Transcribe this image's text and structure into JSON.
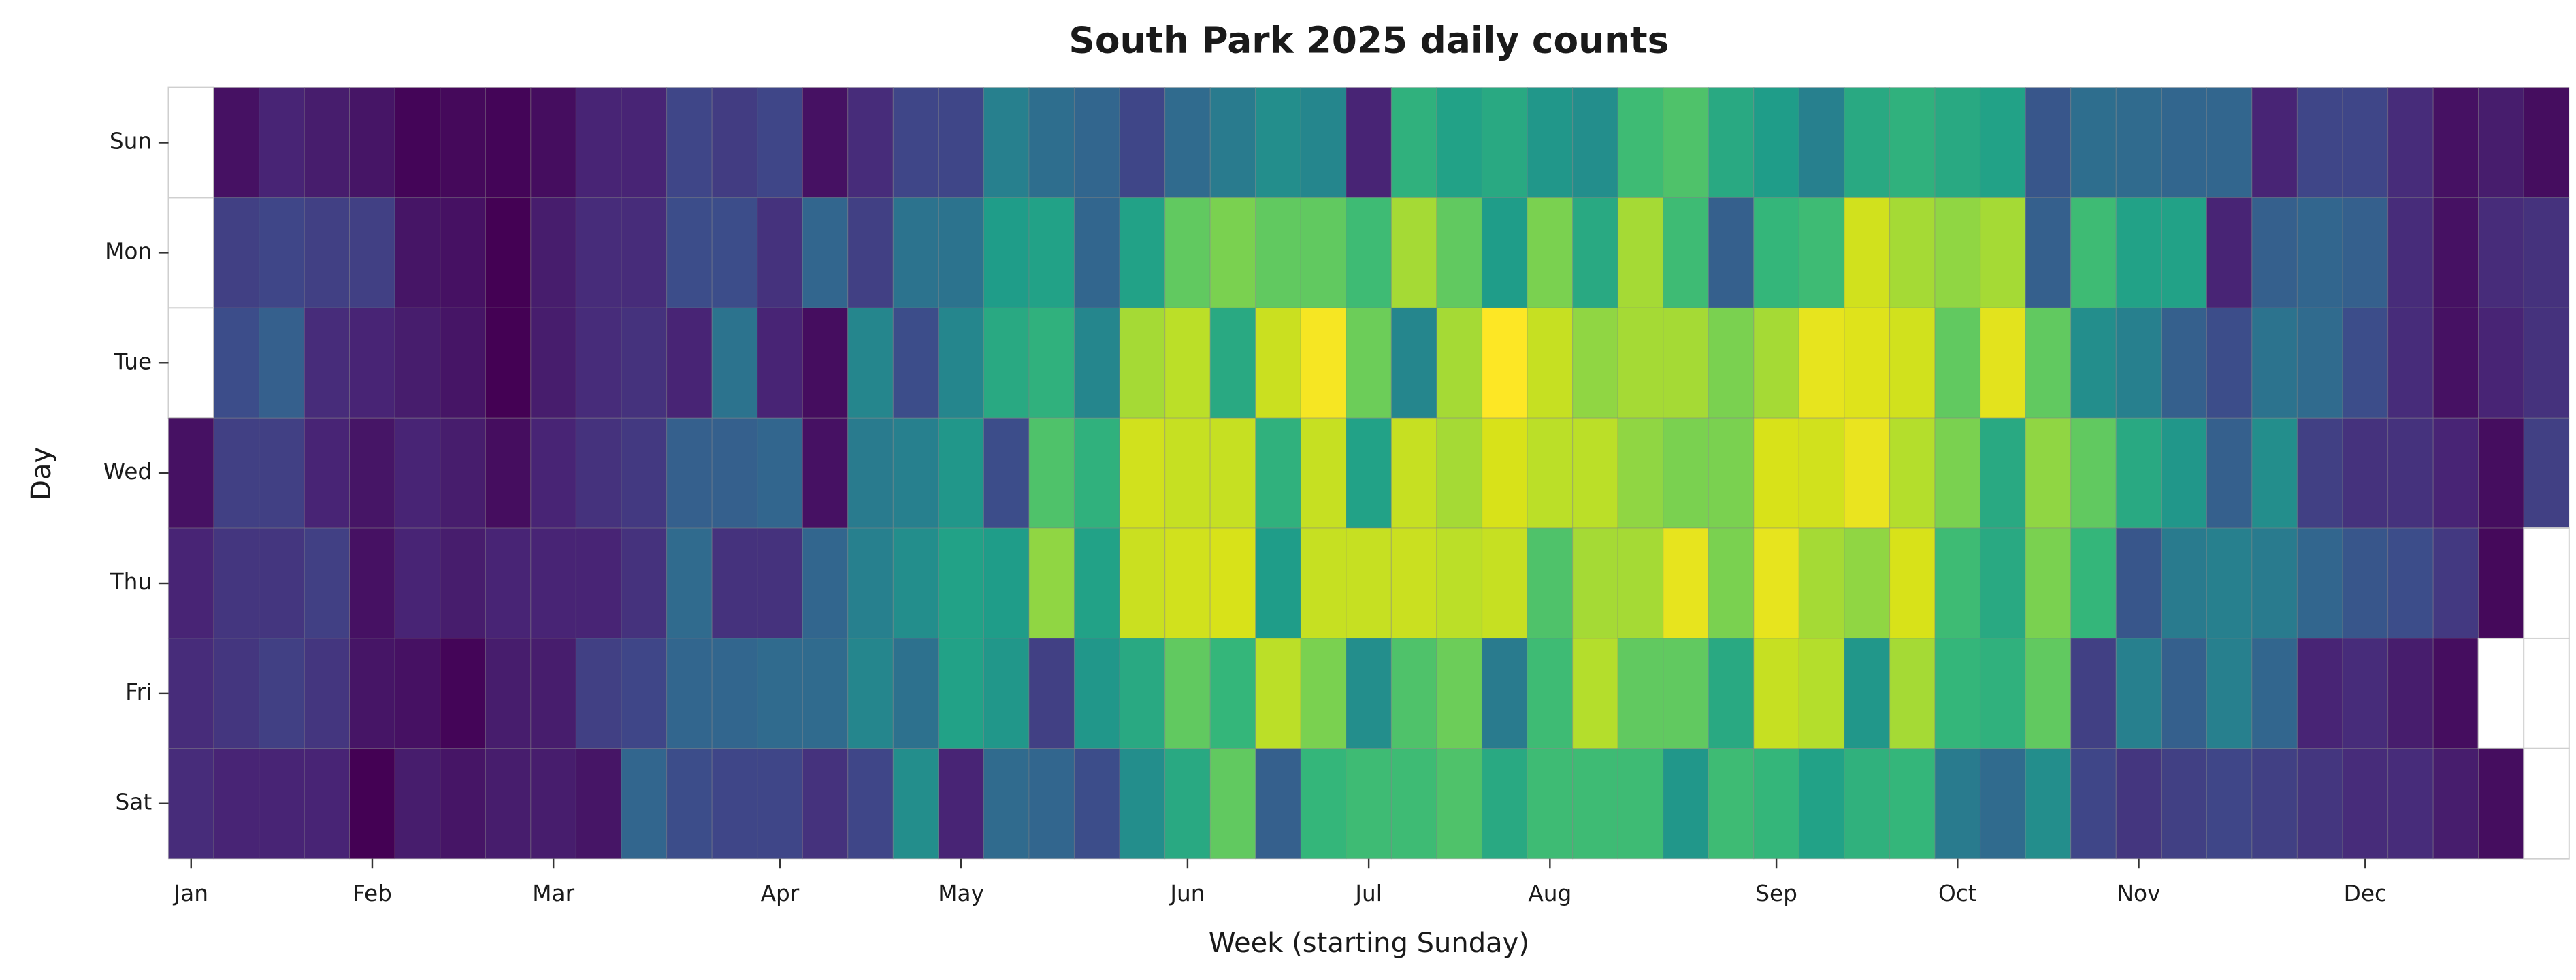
{
  "chart_data": {
    "type": "heatmap",
    "title": "South Park 2025 daily counts",
    "xlabel": "Week (starting Sunday)",
    "ylabel": "Day",
    "colormap": "viridis",
    "rows": [
      "Sun",
      "Mon",
      "Tue",
      "Wed",
      "Thu",
      "Fri",
      "Sat"
    ],
    "xticks": [
      {
        "value": 0,
        "label": "Jan"
      },
      {
        "value": 4,
        "label": "Feb"
      },
      {
        "value": 8,
        "label": "Mar"
      },
      {
        "value": 13,
        "label": "Apr"
      },
      {
        "value": 17,
        "label": "May"
      },
      {
        "value": 22,
        "label": "Jun"
      },
      {
        "value": 26,
        "label": "Jul"
      },
      {
        "value": 30,
        "label": "Aug"
      },
      {
        "value": 35,
        "label": "Sep"
      },
      {
        "value": 39,
        "label": "Oct"
      },
      {
        "value": 43,
        "label": "Nov"
      },
      {
        "value": 48,
        "label": "Dec"
      }
    ],
    "values": [
      [
        null,
        5,
        10,
        8,
        6,
        2,
        3,
        2,
        4,
        10,
        10,
        20,
        17,
        20,
        5,
        12,
        20,
        20,
        40,
        33,
        30,
        20,
        32,
        38,
        45,
        42,
        10,
        58,
        52,
        55,
        48,
        45,
        62,
        65,
        55,
        50,
        40,
        55,
        58,
        55,
        52,
        25,
        33,
        32,
        30,
        30,
        10,
        20,
        20,
        12,
        5,
        8,
        4
      ],
      [
        null,
        18,
        20,
        18,
        18,
        6,
        5,
        1,
        8,
        12,
        12,
        22,
        22,
        14,
        30,
        18,
        35,
        35,
        50,
        52,
        30,
        52,
        68,
        72,
        68,
        68,
        62,
        78,
        68,
        50,
        72,
        55,
        78,
        62,
        28,
        60,
        62,
        88,
        78,
        75,
        78,
        28,
        62,
        52,
        52,
        10,
        28,
        30,
        28,
        12,
        5,
        12,
        14
      ],
      [
        null,
        22,
        28,
        12,
        10,
        8,
        6,
        1,
        8,
        12,
        14,
        10,
        35,
        10,
        4,
        42,
        22,
        42,
        55,
        58,
        42,
        78,
        82,
        55,
        86,
        98,
        70,
        42,
        78,
        100,
        85,
        75,
        78,
        78,
        72,
        78,
        94,
        92,
        88,
        68,
        93,
        68,
        45,
        40,
        28,
        22,
        35,
        32,
        22,
        12,
        5,
        10,
        14
      ],
      [
        5,
        18,
        18,
        10,
        6,
        10,
        8,
        4,
        10,
        14,
        16,
        28,
        28,
        30,
        5,
        38,
        40,
        48,
        22,
        65,
        58,
        88,
        85,
        85,
        58,
        85,
        52,
        85,
        78,
        90,
        82,
        82,
        75,
        72,
        72,
        90,
        88,
        95,
        80,
        72,
        55,
        75,
        68,
        55,
        48,
        28,
        45,
        18,
        14,
        14,
        10,
        4,
        18
      ],
      [
        10,
        15,
        15,
        18,
        5,
        10,
        8,
        10,
        10,
        10,
        14,
        32,
        14,
        14,
        30,
        40,
        45,
        52,
        50,
        75,
        52,
        86,
        88,
        90,
        50,
        85,
        85,
        86,
        82,
        85,
        65,
        78,
        78,
        94,
        72,
        94,
        78,
        75,
        90,
        62,
        55,
        72,
        60,
        25,
        38,
        40,
        38,
        30,
        25,
        22,
        16,
        3,
        null
      ],
      [
        12,
        15,
        18,
        15,
        6,
        5,
        2,
        8,
        8,
        18,
        20,
        30,
        30,
        32,
        32,
        42,
        34,
        52,
        48,
        18,
        48,
        55,
        68,
        60,
        82,
        72,
        45,
        65,
        70,
        38,
        62,
        80,
        68,
        68,
        55,
        85,
        80,
        48,
        78,
        60,
        58,
        68,
        18,
        40,
        28,
        40,
        30,
        10,
        12,
        8,
        4,
        null,
        null
      ],
      [
        12,
        10,
        10,
        10,
        1,
        8,
        6,
        8,
        8,
        6,
        30,
        22,
        20,
        20,
        14,
        20,
        45,
        10,
        32,
        30,
        22,
        45,
        55,
        68,
        28,
        60,
        62,
        62,
        65,
        55,
        62,
        62,
        62,
        48,
        62,
        60,
        52,
        58,
        60,
        38,
        32,
        45,
        20,
        15,
        18,
        20,
        18,
        15,
        12,
        12,
        8,
        4,
        null
      ]
    ]
  }
}
